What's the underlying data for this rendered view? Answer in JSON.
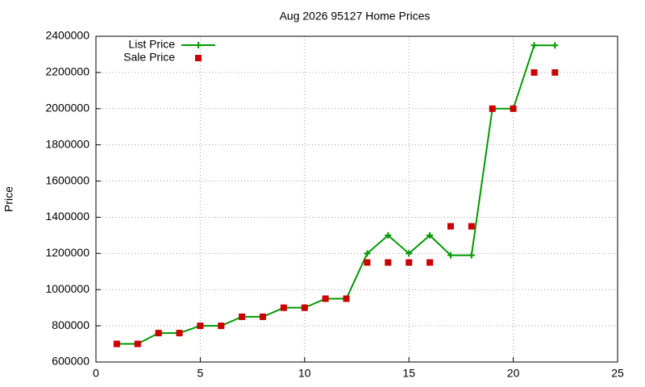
{
  "chart_data": {
    "type": "line",
    "title": "Aug 2026 95127 Home Prices",
    "y_label": "Price",
    "x": [
      1,
      2,
      3,
      4,
      5,
      6,
      7,
      8,
      9,
      10,
      11,
      12,
      13,
      14,
      15,
      16,
      17,
      18,
      19,
      20,
      21,
      22
    ],
    "series": [
      {
        "name": "List Price",
        "color": "#009900",
        "style": "linespoints",
        "values": [
          700000,
          700000,
          760000,
          760000,
          800000,
          800000,
          850000,
          850000,
          900000,
          900000,
          950000,
          950000,
          1200000,
          1300000,
          1200000,
          1300000,
          1190000,
          1190000,
          2000000,
          2000000,
          2350000,
          2350000
        ]
      },
      {
        "name": "Sale Price",
        "color": "#cc0000",
        "style": "points",
        "values": [
          700000,
          700000,
          760000,
          760000,
          800000,
          800000,
          850000,
          850000,
          900000,
          900000,
          950000,
          950000,
          1150000,
          1150000,
          1150000,
          1150000,
          1350000,
          1350000,
          2000000,
          2000000,
          2200000,
          2200000
        ]
      }
    ],
    "xlim": [
      0,
      25
    ],
    "xticks": [
      0,
      5,
      10,
      15,
      20,
      25
    ],
    "ylim": [
      600000,
      2400000
    ],
    "yticks": [
      600000,
      800000,
      1000000,
      1200000,
      1400000,
      1600000,
      1800000,
      2000000,
      2200000,
      2400000
    ],
    "grid": true,
    "legend": "top-left"
  }
}
